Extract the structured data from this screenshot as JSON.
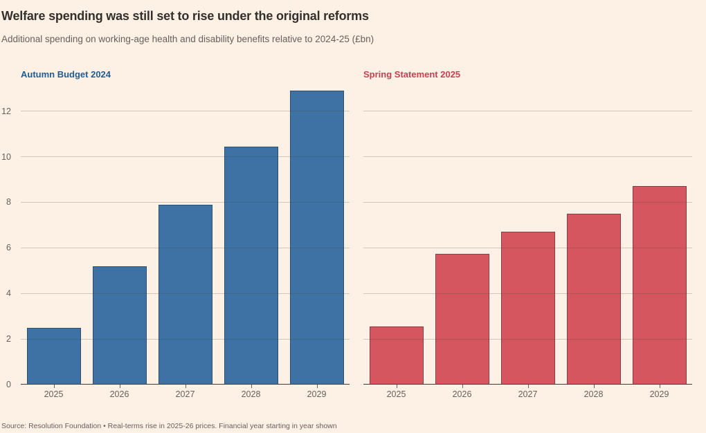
{
  "header": {
    "title": "Welfare spending was still set to rise under the original reforms",
    "subtitle": "Additional spending on working-age health and disability benefits relative to 2024-25 (£bn)"
  },
  "footer": {
    "source": "Source: Resolution Foundation • Real-terms rise in 2025-26 prices. Financial year starting in year shown"
  },
  "colors": {
    "background": "#FDF0E5",
    "title_text": "#33302C",
    "muted_text": "#66605B",
    "grid_line": "rgba(84,70,60,0.25)",
    "axis_line": "#3F3A35",
    "tick_mark": "#66605B",
    "autumn_label": "#1F5C93",
    "spring_label": "#C5404E",
    "autumn_bar": "#3E72A5",
    "autumn_bar_border": "#2C4F6E",
    "spring_bar": "#D6565F",
    "spring_bar_border": "#8A3B41"
  },
  "chart_data": [
    {
      "type": "bar",
      "name": "Autumn Budget 2024",
      "categories": [
        "2025",
        "2026",
        "2027",
        "2028",
        "2029"
      ],
      "values": [
        2.5,
        5.2,
        7.9,
        10.45,
        12.9
      ],
      "bar_color": "#3E72A5",
      "bar_border_color": "#2C4F6E",
      "label_color": "#1F5C93",
      "xlabel": "",
      "ylabel": "",
      "ylim": [
        0,
        13.05
      ],
      "yticks": [
        0,
        2,
        4,
        6,
        8,
        10,
        12
      ],
      "grid": true,
      "y_axis_labels_visible": true,
      "legend_position": "top-left-label"
    },
    {
      "type": "bar",
      "name": "Spring Statement 2025",
      "categories": [
        "2025",
        "2026",
        "2027",
        "2028",
        "2029"
      ],
      "values": [
        2.55,
        5.75,
        6.7,
        7.5,
        8.7
      ],
      "bar_color": "#D6565F",
      "bar_border_color": "#8A3B41",
      "label_color": "#C5404E",
      "xlabel": "",
      "ylabel": "",
      "ylim": [
        0,
        13.05
      ],
      "yticks": [
        0,
        2,
        4,
        6,
        8,
        10,
        12
      ],
      "grid": true,
      "y_axis_labels_visible": false,
      "legend_position": "top-left-label"
    }
  ]
}
